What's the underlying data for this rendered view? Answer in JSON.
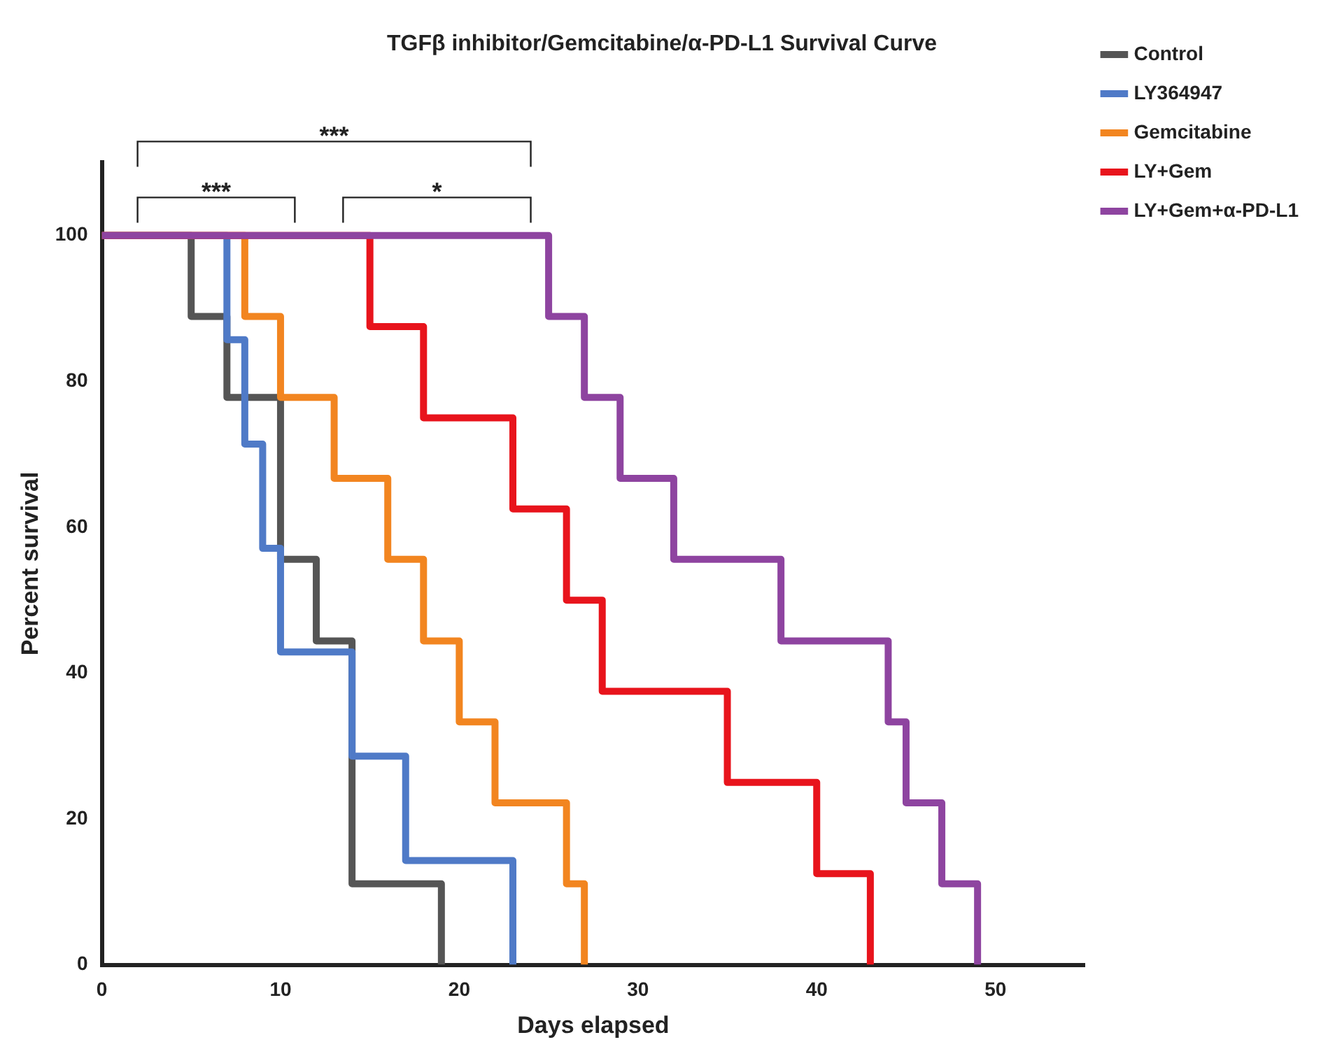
{
  "chart_data": {
    "type": "step",
    "title": "TGFβ inhibitor/Gemcitabine/α-PD-L1 Survival Curve",
    "xlabel": "Days elapsed",
    "ylabel": "Percent survival",
    "xlim": [
      0,
      55
    ],
    "xticks": [
      0,
      10,
      20,
      30,
      40,
      50
    ],
    "ylim": [
      0,
      110
    ],
    "yticks": [
      0,
      20,
      40,
      60,
      80,
      100
    ],
    "grid": false,
    "legend": "top right",
    "marker": "none",
    "line_style": "solid",
    "annotations": [
      "***",
      "***",
      "*"
    ],
    "series": [
      {
        "name": "Control",
        "color": "#555555",
        "x": [
          0,
          5,
          7,
          10,
          12,
          14,
          19
        ],
        "values": [
          100,
          88.9,
          77.8,
          55.6,
          44.4,
          11.1,
          0
        ]
      },
      {
        "name": "LY364947",
        "color": "#4f7ac7",
        "x": [
          0,
          7,
          8,
          9,
          10,
          14,
          17,
          23
        ],
        "values": [
          100,
          85.7,
          71.4,
          57.1,
          42.9,
          28.6,
          14.3,
          0
        ]
      },
      {
        "name": "Gemcitabine",
        "color": "#f28520",
        "x": [
          0,
          8,
          10,
          13,
          16,
          18,
          20,
          22,
          26,
          27
        ],
        "values": [
          100,
          88.9,
          77.8,
          66.7,
          55.6,
          44.4,
          33.3,
          22.2,
          11.1,
          0
        ]
      },
      {
        "name": "LY+Gem",
        "color": "#e8141c",
        "x": [
          0,
          15,
          18,
          23,
          26,
          28,
          35,
          40,
          43
        ],
        "values": [
          100,
          87.5,
          75,
          62.5,
          50,
          37.5,
          25,
          12.5,
          0
        ]
      },
      {
        "name": "LY+Gem+α-PD-L1",
        "color": "#8e44a0",
        "x": [
          0,
          25,
          27,
          29,
          32,
          38,
          44,
          45,
          47,
          49
        ],
        "values": [
          100,
          88.9,
          77.8,
          66.7,
          55.6,
          44.4,
          33.3,
          22.2,
          11.1,
          0
        ]
      }
    ]
  }
}
